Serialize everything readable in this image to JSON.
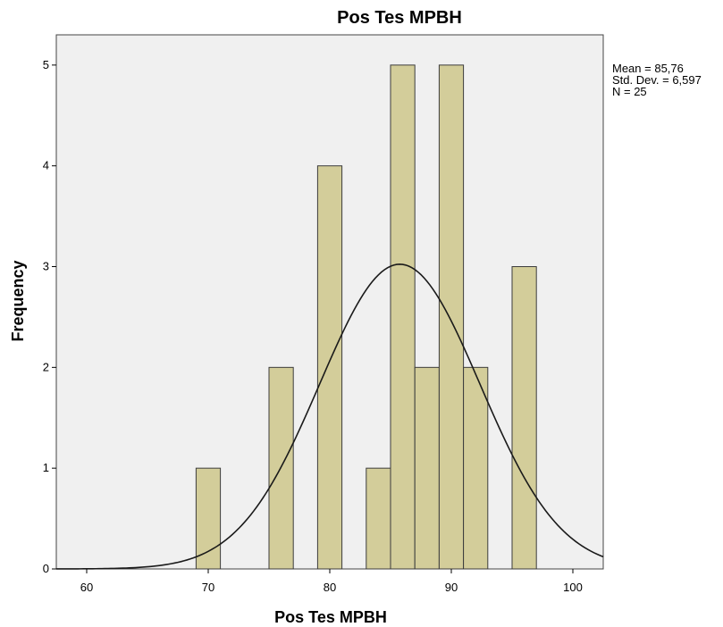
{
  "chart_data": {
    "type": "bar",
    "title": "Pos Tes MPBH",
    "xlabel": "Pos Tes MPBH",
    "ylabel": "Frequency",
    "xlim": [
      57.5,
      102.5
    ],
    "ylim": [
      0,
      5.3
    ],
    "x_ticks": [
      "60",
      "70",
      "80",
      "90",
      "100"
    ],
    "y_ticks": [
      "0",
      "1",
      "2",
      "3",
      "4",
      "5"
    ],
    "bin_width": 2,
    "bins": [
      {
        "start": 69,
        "end": 71,
        "count": 1
      },
      {
        "start": 75,
        "end": 77,
        "count": 2
      },
      {
        "start": 79,
        "end": 81,
        "count": 4
      },
      {
        "start": 83,
        "end": 85,
        "count": 1
      },
      {
        "start": 85,
        "end": 87,
        "count": 5
      },
      {
        "start": 87,
        "end": 89,
        "count": 2
      },
      {
        "start": 89,
        "end": 91,
        "count": 5
      },
      {
        "start": 91,
        "end": 93,
        "count": 2
      },
      {
        "start": 95,
        "end": 97,
        "count": 3
      }
    ],
    "normal_curve": {
      "mean": 85.76,
      "sd": 6.597,
      "n": 25
    },
    "stats": {
      "mean_label": "Mean = 85,76",
      "sd_label": "Std. Dev. = 6,597",
      "n_label": "N = 25"
    },
    "grid": false,
    "colors": {
      "bar_fill": "#d3cd9a",
      "bar_stroke": "#3c3c3c",
      "plot_background": "#f0f0f0",
      "curve": "#1a1a1a"
    }
  }
}
